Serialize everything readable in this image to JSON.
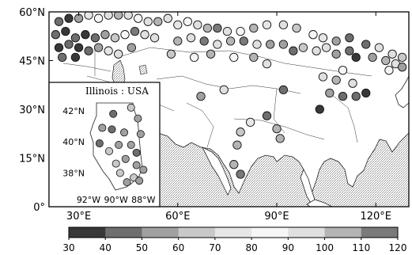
{
  "map": {
    "lat_axis": {
      "labels": [
        "60°N",
        "45°N",
        "30°N",
        "15°N",
        "0°"
      ],
      "values": [
        60,
        45,
        30,
        15,
        0
      ]
    },
    "lon_axis": {
      "labels": [
        "30°E",
        "60°E",
        "90°E",
        "120°E"
      ],
      "values": [
        30,
        60,
        90,
        120
      ]
    },
    "extent": {
      "lon_min": 21,
      "lon_max": 130,
      "lat_min": 0,
      "lat_max": 60
    }
  },
  "inset": {
    "title": "Illinois : USA",
    "lat_labels": [
      "42°N",
      "40°N",
      "38°N"
    ],
    "lat_values": [
      42,
      40,
      38
    ],
    "lon_labels": [
      "92°W",
      "90°W",
      "88°W"
    ],
    "lon_values": [
      -92,
      -90,
      -88
    ]
  },
  "colorbar": {
    "tick_labels": [
      "30",
      "40",
      "50",
      "60",
      "70",
      "80",
      "90",
      "100",
      "110",
      "120"
    ],
    "min": 30,
    "max": 120,
    "colors": [
      "#383838",
      "#6e6e6e",
      "#a0a0a0",
      "#c8c8c8",
      "#e6e6e6",
      "#f6f6f6",
      "#e0e0e0",
      "#b4b4b4",
      "#7a7a7a"
    ]
  },
  "stations": [
    {
      "lon": 24,
      "lat": 57,
      "v": 45
    },
    {
      "lon": 27,
      "lat": 58,
      "v": 35
    },
    {
      "lon": 30,
      "lat": 58,
      "v": 55
    },
    {
      "lon": 33,
      "lat": 59,
      "v": 70
    },
    {
      "lon": 36,
      "lat": 58,
      "v": 85
    },
    {
      "lon": 39,
      "lat": 59,
      "v": 90
    },
    {
      "lon": 42,
      "lat": 59,
      "v": 100
    },
    {
      "lon": 45,
      "lat": 59,
      "v": 95
    },
    {
      "lon": 48,
      "lat": 58,
      "v": 80
    },
    {
      "lon": 51,
      "lat": 57,
      "v": 95
    },
    {
      "lon": 54,
      "lat": 57,
      "v": 105
    },
    {
      "lon": 57,
      "lat": 58,
      "v": 90
    },
    {
      "lon": 60,
      "lat": 56,
      "v": 75
    },
    {
      "lon": 63,
      "lat": 57,
      "v": 85
    },
    {
      "lon": 66,
      "lat": 56,
      "v": 95
    },
    {
      "lon": 69,
      "lat": 55,
      "v": 100
    },
    {
      "lon": 72,
      "lat": 55,
      "v": 110
    },
    {
      "lon": 75,
      "lat": 54,
      "v": 95
    },
    {
      "lon": 79,
      "lat": 54,
      "v": 85
    },
    {
      "lon": 83,
      "lat": 55,
      "v": 105
    },
    {
      "lon": 87,
      "lat": 56,
      "v": 75
    },
    {
      "lon": 92,
      "lat": 56,
      "v": 90
    },
    {
      "lon": 96,
      "lat": 55,
      "v": 60
    },
    {
      "lon": 101,
      "lat": 53,
      "v": 85
    },
    {
      "lon": 104,
      "lat": 52,
      "v": 70
    },
    {
      "lon": 108,
      "lat": 51,
      "v": 55
    },
    {
      "lon": 112,
      "lat": 52,
      "v": 45
    },
    {
      "lon": 117,
      "lat": 50,
      "v": 40
    },
    {
      "lon": 121,
      "lat": 49,
      "v": 95
    },
    {
      "lon": 125,
      "lat": 47,
      "v": 90
    },
    {
      "lon": 128,
      "lat": 46,
      "v": 60
    },
    {
      "lon": 23,
      "lat": 53,
      "v": 40
    },
    {
      "lon": 26,
      "lat": 54,
      "v": 35
    },
    {
      "lon": 29,
      "lat": 52,
      "v": 45
    },
    {
      "lon": 32,
      "lat": 53,
      "v": 38
    },
    {
      "lon": 35,
      "lat": 52,
      "v": 40
    },
    {
      "lon": 38,
      "lat": 53,
      "v": 55
    },
    {
      "lon": 41,
      "lat": 52,
      "v": 60
    },
    {
      "lon": 44,
      "lat": 53,
      "v": 80
    },
    {
      "lon": 47,
      "lat": 54,
      "v": 110
    },
    {
      "lon": 50,
      "lat": 53,
      "v": 95
    },
    {
      "lon": 53,
      "lat": 52,
      "v": 90
    },
    {
      "lon": 24,
      "lat": 49,
      "v": 35
    },
    {
      "lon": 27,
      "lat": 50,
      "v": 45
    },
    {
      "lon": 30,
      "lat": 49,
      "v": 35
    },
    {
      "lon": 33,
      "lat": 48,
      "v": 40
    },
    {
      "lon": 36,
      "lat": 49,
      "v": 50
    },
    {
      "lon": 39,
      "lat": 48,
      "v": 75
    },
    {
      "lon": 42,
      "lat": 47,
      "v": 90
    },
    {
      "lon": 46,
      "lat": 49,
      "v": 50
    },
    {
      "lon": 25,
      "lat": 46,
      "v": 40
    },
    {
      "lon": 29,
      "lat": 46,
      "v": 38
    },
    {
      "lon": 60,
      "lat": 51,
      "v": 105
    },
    {
      "lon": 64,
      "lat": 52,
      "v": 90
    },
    {
      "lon": 68,
      "lat": 51,
      "v": 110
    },
    {
      "lon": 72,
      "lat": 50,
      "v": 95
    },
    {
      "lon": 76,
      "lat": 51,
      "v": 100
    },
    {
      "lon": 80,
      "lat": 51,
      "v": 110
    },
    {
      "lon": 84,
      "lat": 50,
      "v": 95
    },
    {
      "lon": 88,
      "lat": 50,
      "v": 55
    },
    {
      "lon": 92,
      "lat": 50,
      "v": 50
    },
    {
      "lon": 95,
      "lat": 48,
      "v": 45
    },
    {
      "lon": 98,
      "lat": 49,
      "v": 60
    },
    {
      "lon": 102,
      "lat": 48,
      "v": 95
    },
    {
      "lon": 105,
      "lat": 49,
      "v": 90
    },
    {
      "lon": 108,
      "lat": 47,
      "v": 50
    },
    {
      "lon": 112,
      "lat": 48,
      "v": 40
    },
    {
      "lon": 114,
      "lat": 46,
      "v": 35
    },
    {
      "lon": 119,
      "lat": 46,
      "v": 50
    },
    {
      "lon": 123,
      "lat": 45,
      "v": 100
    },
    {
      "lon": 126,
      "lat": 44,
      "v": 90
    },
    {
      "lon": 128,
      "lat": 43,
      "v": 55
    },
    {
      "lon": 124,
      "lat": 42,
      "v": 85
    },
    {
      "lon": 70,
      "lat": 47,
      "v": 105
    },
    {
      "lon": 77,
      "lat": 46,
      "v": 85
    },
    {
      "lon": 83,
      "lat": 46,
      "v": 100
    },
    {
      "lon": 87,
      "lat": 44,
      "v": 90
    },
    {
      "lon": 58,
      "lat": 47,
      "v": 60
    },
    {
      "lon": 65,
      "lat": 46,
      "v": 80
    },
    {
      "lon": 104,
      "lat": 40,
      "v": 95
    },
    {
      "lon": 108,
      "lat": 39,
      "v": 100
    },
    {
      "lon": 113,
      "lat": 38,
      "v": 90
    },
    {
      "lon": 106,
      "lat": 35,
      "v": 55
    },
    {
      "lon": 110,
      "lat": 34,
      "v": 45
    },
    {
      "lon": 114,
      "lat": 34,
      "v": 40
    },
    {
      "lon": 117,
      "lat": 35,
      "v": 38
    },
    {
      "lon": 103,
      "lat": 30,
      "v": 35
    },
    {
      "lon": 92,
      "lat": 36,
      "v": 45
    },
    {
      "lon": 87,
      "lat": 28,
      "v": 45
    },
    {
      "lon": 82,
      "lat": 26,
      "v": 70
    },
    {
      "lon": 79,
      "lat": 23,
      "v": 60
    },
    {
      "lon": 78,
      "lat": 19,
      "v": 100
    },
    {
      "lon": 77,
      "lat": 13,
      "v": 105
    },
    {
      "lon": 79,
      "lat": 10,
      "v": 110
    },
    {
      "lon": 90,
      "lat": 24,
      "v": 105
    },
    {
      "lon": 91,
      "lat": 21,
      "v": 100
    },
    {
      "lon": 74,
      "lat": 36,
      "v": 95
    },
    {
      "lon": 67,
      "lat": 34,
      "v": 50
    },
    {
      "lon": 110,
      "lat": 42,
      "v": 80
    }
  ],
  "inset_stations": [
    {
      "lon": -88.9,
      "lat": 42.2,
      "v": 60
    },
    {
      "lon": -90.2,
      "lat": 41.8,
      "v": 45
    },
    {
      "lon": -88.4,
      "lat": 41.5,
      "v": 55
    },
    {
      "lon": -91.0,
      "lat": 40.9,
      "v": 50
    },
    {
      "lon": -90.3,
      "lat": 40.8,
      "v": 45
    },
    {
      "lon": -89.4,
      "lat": 40.6,
      "v": 50
    },
    {
      "lon": -88.2,
      "lat": 40.5,
      "v": 55
    },
    {
      "lon": -91.2,
      "lat": 39.9,
      "v": 40
    },
    {
      "lon": -89.8,
      "lat": 39.8,
      "v": 55
    },
    {
      "lon": -88.9,
      "lat": 39.8,
      "v": 50
    },
    {
      "lon": -90.5,
      "lat": 39.4,
      "v": 60
    },
    {
      "lon": -89.3,
      "lat": 38.9,
      "v": 50
    },
    {
      "lon": -88.5,
      "lat": 39.3,
      "v": 45
    },
    {
      "lon": -90.0,
      "lat": 38.6,
      "v": 60
    },
    {
      "lon": -88.5,
      "lat": 38.5,
      "v": 50
    },
    {
      "lon": -88.0,
      "lat": 38.2,
      "v": 55
    },
    {
      "lon": -89.7,
      "lat": 38.0,
      "v": 60
    },
    {
      "lon": -88.7,
      "lat": 37.7,
      "v": 65
    },
    {
      "lon": -89.2,
      "lat": 37.4,
      "v": 55
    },
    {
      "lon": -88.3,
      "lat": 37.5,
      "v": 50
    }
  ]
}
